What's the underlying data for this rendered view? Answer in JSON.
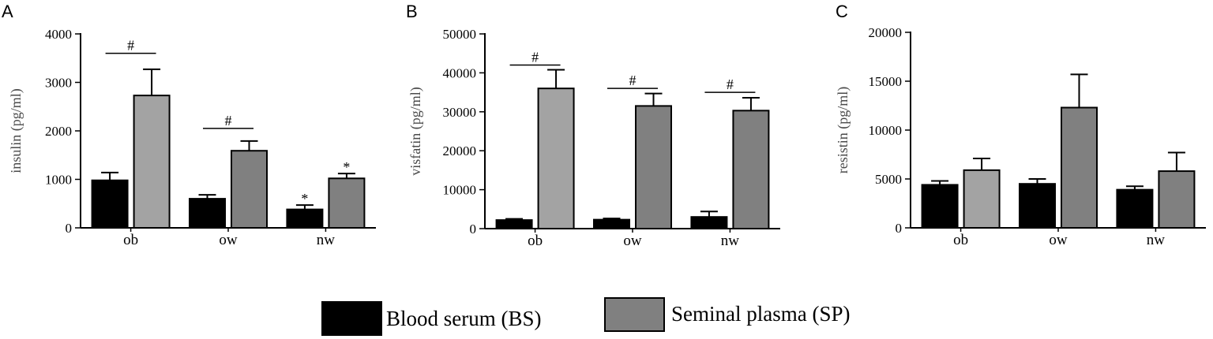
{
  "legend": [
    {
      "label": "Blood serum (BS)",
      "color": "#000000"
    },
    {
      "label": "Seminal plasma (SP)",
      "color": "#808080"
    }
  ],
  "chart_data": [
    {
      "type": "bar",
      "panel": "A",
      "xlabel": "",
      "ylabel": "insulin (pg/ml)",
      "categories": [
        "ob",
        "ow",
        "nw"
      ],
      "ylim": [
        0,
        4000
      ],
      "yticks": [
        "0",
        "1000",
        "2000",
        "3000",
        "4000"
      ],
      "series": [
        {
          "name": "Blood serum (BS)",
          "color": "#000000",
          "values": [
            980,
            600,
            380
          ],
          "errors": [
            160,
            80,
            90
          ]
        },
        {
          "name": "Seminal plasma (SP)",
          "color": "#a3a3a3",
          "colors": [
            "#a3a3a3",
            "#808080",
            "#808080"
          ],
          "values": [
            2730,
            1590,
            1020
          ],
          "errors": [
            540,
            200,
            100
          ]
        }
      ],
      "annotations": [
        {
          "category": "ob",
          "text": "#",
          "bracket": true,
          "level": 3600
        },
        {
          "category": "ow",
          "text": "#",
          "bracket": true,
          "level": 2050
        },
        {
          "category": "nw",
          "series": 0,
          "text": "*"
        },
        {
          "category": "nw",
          "series": 1,
          "text": "*"
        }
      ]
    },
    {
      "type": "bar",
      "panel": "B",
      "xlabel": "",
      "ylabel": "visfatin (pg/ml)",
      "categories": [
        "ob",
        "ow",
        "nw"
      ],
      "ylim": [
        0,
        50000
      ],
      "yticks": [
        "0",
        "10000",
        "20000",
        "30000",
        "40000",
        "50000"
      ],
      "series": [
        {
          "name": "Blood serum (BS)",
          "color": "#000000",
          "values": [
            2200,
            2300,
            3000
          ],
          "errors": [
            300,
            300,
            1400
          ]
        },
        {
          "name": "Seminal plasma (SP)",
          "color": "#a3a3a3",
          "colors": [
            "#a3a3a3",
            "#808080",
            "#808080"
          ],
          "values": [
            36000,
            31500,
            30300
          ],
          "errors": [
            4800,
            3200,
            3300
          ]
        }
      ],
      "annotations": [
        {
          "category": "ob",
          "text": "#",
          "bracket": true,
          "level": 42000
        },
        {
          "category": "ow",
          "text": "#",
          "bracket": true,
          "level": 36000
        },
        {
          "category": "nw",
          "text": "#",
          "bracket": true,
          "level": 35000
        }
      ]
    },
    {
      "type": "bar",
      "panel": "C",
      "xlabel": "",
      "ylabel": "resistin (pg/ml)",
      "categories": [
        "ob",
        "ow",
        "nw"
      ],
      "ylim": [
        0,
        20000
      ],
      "yticks": [
        "0",
        "5000",
        "10000",
        "15000",
        "20000"
      ],
      "series": [
        {
          "name": "Blood serum (BS)",
          "color": "#000000",
          "values": [
            4400,
            4500,
            3900
          ],
          "errors": [
            400,
            500,
            350
          ]
        },
        {
          "name": "Seminal plasma (SP)",
          "color": "#a3a3a3",
          "colors": [
            "#a3a3a3",
            "#808080",
            "#808080"
          ],
          "values": [
            5900,
            12300,
            5800
          ],
          "errors": [
            1200,
            3400,
            1900
          ]
        }
      ],
      "annotations": []
    }
  ]
}
